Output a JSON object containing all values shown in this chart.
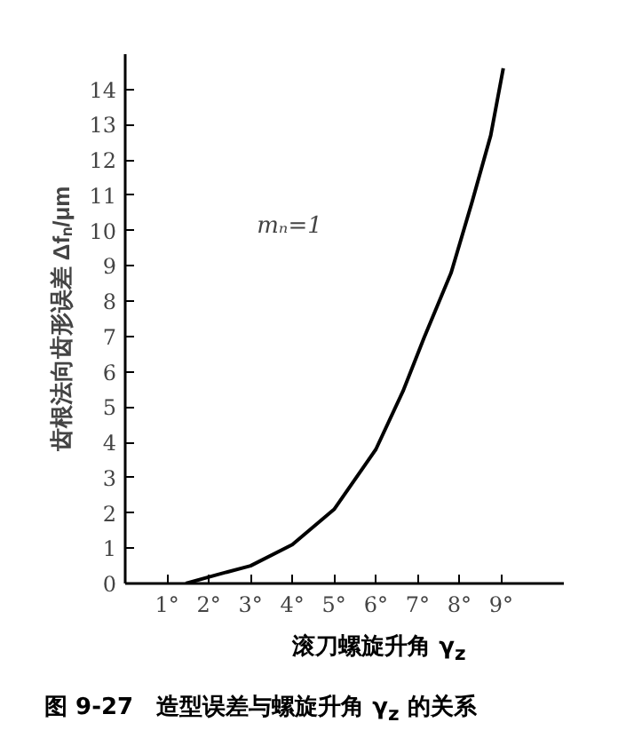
{
  "chart_data": {
    "type": "line",
    "xlabel": "滚刀螺旋升角 γ$_{z}$",
    "ylabel": "齿根法向齿形误差 Δfₙ/μm",
    "annotations": [
      "mₙ=1",
      "图 9-27　造型误差与螺旋升角 γ$_{z}$ 的关系"
    ],
    "series": [
      {
        "color": "#000000",
        "x": [
          1.45,
          2.2,
          3,
          4,
          5,
          6,
          6.65,
          7.15,
          7.8,
          8.3,
          8.75,
          9.05
        ],
        "values": [
          0,
          0.25,
          0.5,
          1.1,
          2.1,
          3.8,
          5.45,
          6.95,
          8.8,
          10.8,
          12.7,
          14.6
        ]
      }
    ],
    "xlim": [
      0,
      10.5
    ],
    "ylim": [
      0,
      15
    ],
    "xticks": [
      {
        "value": 1,
        "label": "1°"
      },
      {
        "value": 2,
        "label": "2°"
      },
      {
        "value": 3,
        "label": "3°"
      },
      {
        "value": 4,
        "label": "4°"
      },
      {
        "value": 5,
        "label": "5°"
      },
      {
        "value": 6,
        "label": "6°"
      },
      {
        "value": 7,
        "label": "7°"
      },
      {
        "value": 8,
        "label": "8°"
      },
      {
        "value": 9,
        "label": "9°"
      }
    ],
    "yticks": [
      0,
      1,
      2,
      3,
      4,
      5,
      6,
      7,
      8,
      9,
      10,
      11,
      12,
      13,
      14
    ],
    "grid": false,
    "marker": "none",
    "line_style": "solid"
  }
}
